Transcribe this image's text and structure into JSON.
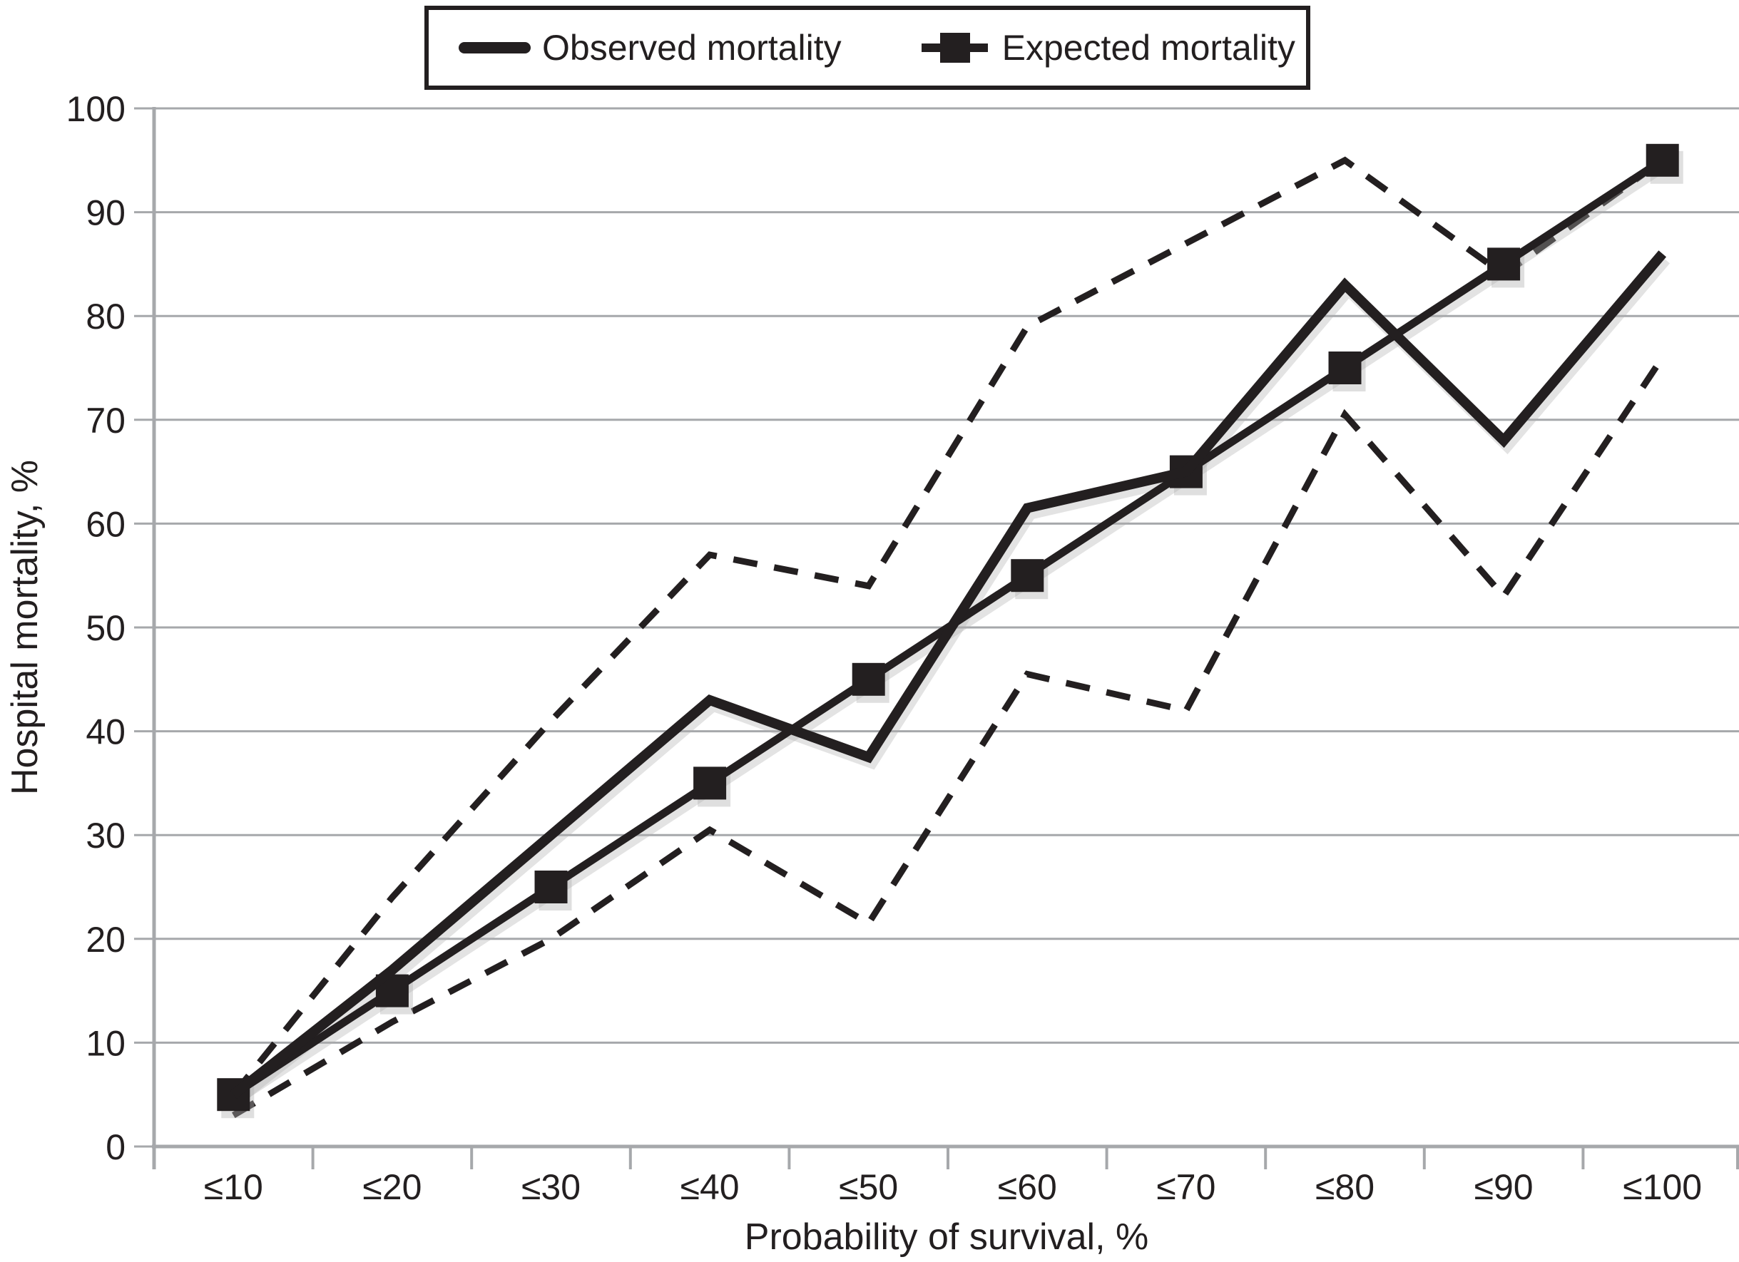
{
  "figure": {
    "background": "#ffffff",
    "ink_color": "#231f20",
    "grid_color": "#a6a8ab",
    "shadow_color": "#b0b0b0"
  },
  "legend": {
    "items": [
      {
        "label": "Observed mortality",
        "marker": "solid-line"
      },
      {
        "label": "Expected mortality",
        "marker": "line-with-square"
      }
    ]
  },
  "chart_data": {
    "type": "line",
    "title": "",
    "xlabel": "Probability of survival, %",
    "ylabel": "Hospital mortality, %",
    "categories": [
      "≤10",
      "≤20",
      "≤30",
      "≤40",
      "≤50",
      "≤60",
      "≤70",
      "≤80",
      "≤90",
      "≤100"
    ],
    "yticks": [
      0,
      10,
      20,
      30,
      40,
      50,
      60,
      70,
      80,
      90,
      100
    ],
    "ylim": [
      0,
      100
    ],
    "grid": true,
    "legend_position": "top-center",
    "series": [
      {
        "name": "Observed mortality",
        "style": "solid",
        "stroke_width": 14,
        "marker": "none",
        "values": [
          5,
          17,
          30,
          43,
          37.5,
          61.5,
          65,
          83,
          68,
          86
        ]
      },
      {
        "name": "Expected mortality",
        "style": "solid",
        "stroke_width": 11,
        "marker": "square",
        "values": [
          5,
          15,
          25,
          35,
          45,
          55,
          65,
          75,
          85,
          95
        ]
      },
      {
        "name": "Upper bound (dashed, unlabeled)",
        "style": "dashed",
        "stroke_width": 9,
        "marker": "none",
        "values": [
          5,
          24,
          41,
          57,
          54,
          79,
          87,
          95,
          84,
          95
        ]
      },
      {
        "name": "Lower bound (dashed, unlabeled)",
        "style": "dashed",
        "stroke_width": 9,
        "marker": "none",
        "values": [
          3,
          12,
          20,
          30.5,
          21.5,
          45.5,
          42,
          70.5,
          53,
          76
        ]
      }
    ]
  }
}
